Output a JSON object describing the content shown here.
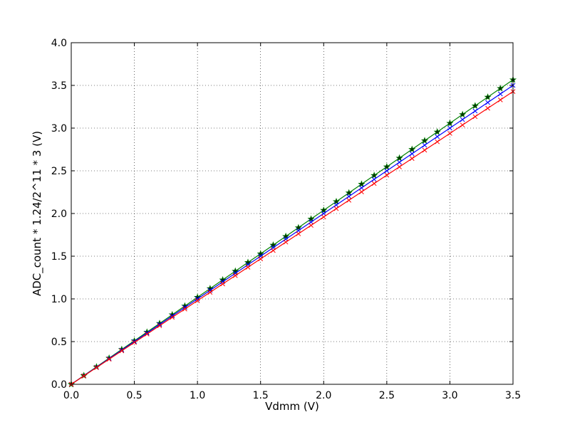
{
  "chart_data": {
    "type": "line",
    "title": "",
    "xlabel": "Vdmm (V)",
    "ylabel": "ADC_count * 1.24/2^11 * 3 (V)",
    "xlim": [
      0.0,
      3.5
    ],
    "ylim": [
      0.0,
      4.0
    ],
    "xticks": [
      "0.0",
      "0.5",
      "1.0",
      "1.5",
      "2.0",
      "2.5",
      "3.0",
      "3.5"
    ],
    "yticks": [
      "0.0",
      "0.5",
      "1.0",
      "1.5",
      "2.0",
      "2.5",
      "3.0",
      "3.5",
      "4.0"
    ],
    "grid": true,
    "x": [
      0.0,
      0.1,
      0.2,
      0.3,
      0.4,
      0.5,
      0.6,
      0.7,
      0.8,
      0.9,
      1.0,
      1.1,
      1.2,
      1.3,
      1.4,
      1.5,
      1.6,
      1.7,
      1.8,
      1.9,
      2.0,
      2.1,
      2.2,
      2.3,
      2.4,
      2.5,
      2.6,
      2.7,
      2.8,
      2.9,
      3.0,
      3.1,
      3.2,
      3.3,
      3.4,
      3.5
    ],
    "series": [
      {
        "marker": "star",
        "color": "#008000",
        "values": [
          0.0,
          0.102,
          0.204,
          0.306,
          0.408,
          0.509,
          0.611,
          0.713,
          0.815,
          0.917,
          1.019,
          1.121,
          1.223,
          1.325,
          1.427,
          1.528,
          1.63,
          1.732,
          1.834,
          1.936,
          2.038,
          2.14,
          2.242,
          2.344,
          2.446,
          2.547,
          2.649,
          2.751,
          2.853,
          2.955,
          3.057,
          3.159,
          3.261,
          3.363,
          3.465,
          3.566
        ]
      },
      {
        "marker": "x",
        "color": "#0000ff",
        "values": [
          0.0,
          0.1,
          0.2,
          0.3,
          0.4,
          0.5,
          0.6,
          0.7,
          0.8,
          0.9,
          1.0,
          1.1,
          1.2,
          1.3,
          1.4,
          1.5,
          1.6,
          1.7,
          1.8,
          1.9,
          2.0,
          2.1,
          2.2,
          2.3,
          2.4,
          2.5,
          2.6,
          2.7,
          2.8,
          2.9,
          3.0,
          3.1,
          3.2,
          3.3,
          3.4,
          3.5
        ]
      },
      {
        "marker": "plus",
        "color": "#ff0000",
        "values": [
          0.0,
          0.098,
          0.196,
          0.294,
          0.392,
          0.49,
          0.588,
          0.686,
          0.784,
          0.881,
          0.979,
          1.077,
          1.175,
          1.273,
          1.371,
          1.469,
          1.567,
          1.665,
          1.763,
          1.861,
          1.959,
          2.057,
          2.155,
          2.253,
          2.351,
          2.449,
          2.546,
          2.644,
          2.742,
          2.84,
          2.938,
          3.036,
          3.134,
          3.232,
          3.33,
          3.428
        ]
      }
    ]
  }
}
